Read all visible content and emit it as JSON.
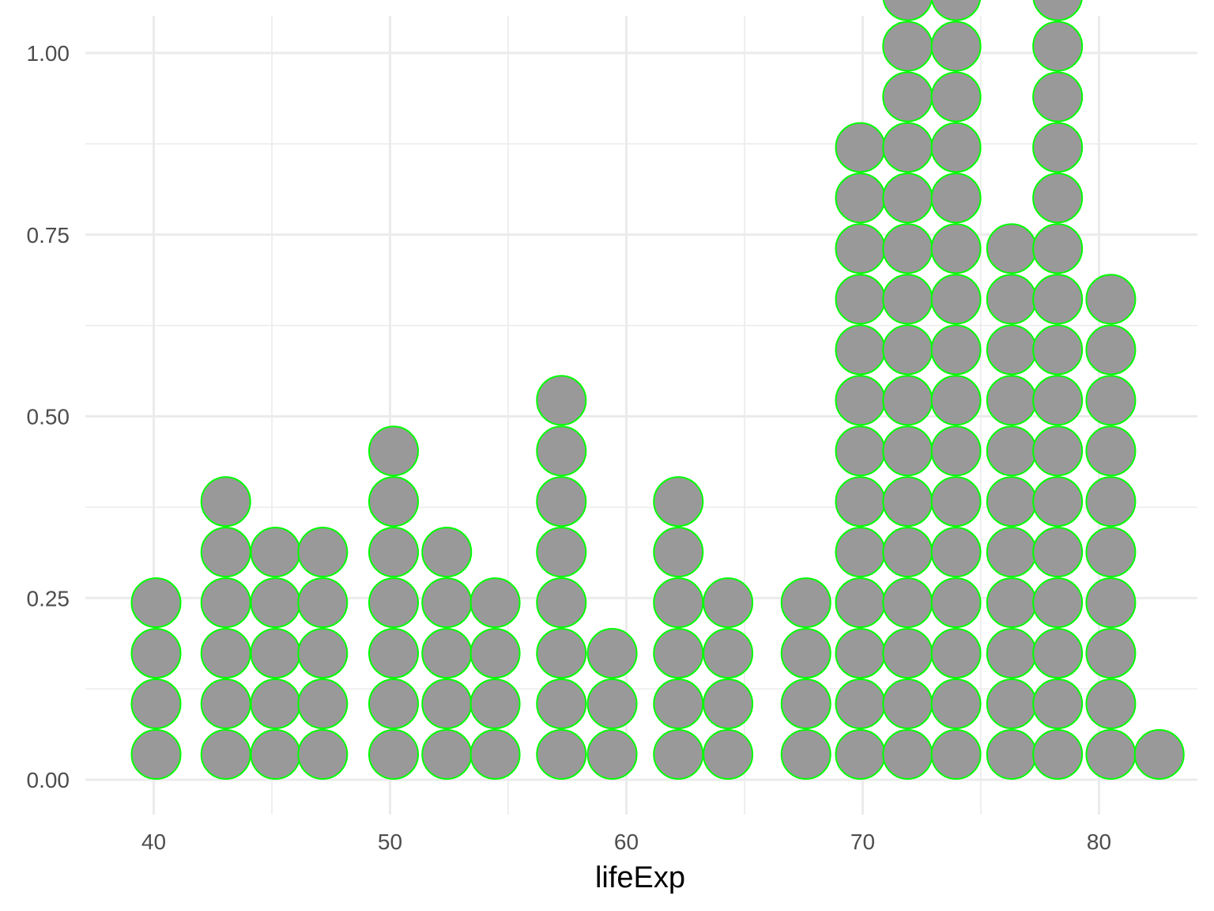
{
  "chart_data": {
    "type": "scatter",
    "subtype": "dotplot",
    "title": "",
    "xlabel": "lifeExp",
    "ylabel": "",
    "xlim": [
      37,
      84.1
    ],
    "ylim": [
      -0.05,
      1.05
    ],
    "x_ticks": [
      40,
      50,
      60,
      70,
      80
    ],
    "x_tick_labels": [
      "40",
      "50",
      "60",
      "70",
      "80"
    ],
    "y_ticks": [
      0,
      0.25,
      0.5,
      0.75,
      1
    ],
    "y_tick_labels": [
      "0.00",
      "0.25",
      "0.50",
      "0.75",
      "1.00"
    ],
    "grid": true,
    "legend": "none",
    "dot_fill": "#999999",
    "dot_stroke": "#00ff00",
    "background": "#ffffff",
    "grid_color": "#ebebeb",
    "stack_step": 0.0696,
    "columns": [
      {
        "x": 40.1,
        "count": 4
      },
      {
        "x": 43.05,
        "count": 6
      },
      {
        "x": 45.15,
        "count": 5
      },
      {
        "x": 47.15,
        "count": 5
      },
      {
        "x": 50.15,
        "count": 7
      },
      {
        "x": 52.4,
        "count": 5
      },
      {
        "x": 54.45,
        "count": 4
      },
      {
        "x": 57.25,
        "count": 8
      },
      {
        "x": 59.4,
        "count": 3
      },
      {
        "x": 62.2,
        "count": 6
      },
      {
        "x": 64.3,
        "count": 4
      },
      {
        "x": 67.6,
        "count": 4
      },
      {
        "x": 69.9,
        "count": 13
      },
      {
        "x": 71.9,
        "count": 16
      },
      {
        "x": 73.95,
        "count": 17
      },
      {
        "x": 76.3,
        "count": 11
      },
      {
        "x": 78.25,
        "count": 16
      },
      {
        "x": 80.5,
        "count": 10
      },
      {
        "x": 82.55,
        "count": 1
      }
    ]
  }
}
